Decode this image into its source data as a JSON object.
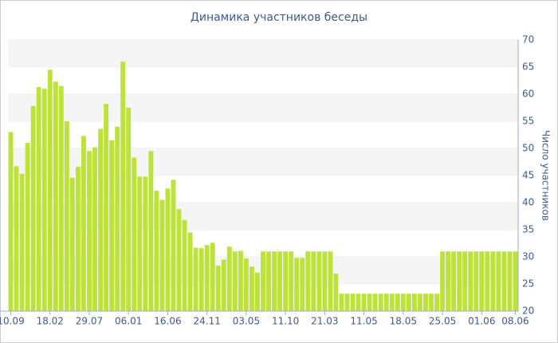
{
  "chart_data": {
    "type": "bar",
    "title": "Динамика участников беседы",
    "y_axis_label": "Число участников",
    "categories": [
      "10.09",
      null,
      null,
      null,
      null,
      null,
      null,
      "18.02",
      null,
      null,
      null,
      null,
      null,
      null,
      "29.07",
      null,
      null,
      null,
      null,
      null,
      null,
      "06.01",
      null,
      null,
      null,
      null,
      null,
      null,
      "16.06",
      null,
      null,
      null,
      null,
      null,
      null,
      "24.11",
      null,
      null,
      null,
      null,
      null,
      null,
      "03.05",
      null,
      null,
      null,
      null,
      null,
      null,
      "11.10",
      null,
      null,
      null,
      null,
      null,
      null,
      "21.03",
      null,
      null,
      null,
      null,
      null,
      null,
      "11.05",
      null,
      null,
      null,
      null,
      null,
      null,
      "18.05",
      null,
      null,
      null,
      null,
      null,
      null,
      "25.05",
      null,
      null,
      null,
      null,
      null,
      null,
      "01.06",
      null,
      null,
      null,
      null,
      null,
      "08.06"
    ],
    "values": [
      53,
      46.7,
      45.3,
      51,
      57.8,
      61.3,
      61,
      64.5,
      62.3,
      61.5,
      55,
      44.6,
      46.6,
      52.3,
      49.5,
      50.2,
      53.6,
      58.2,
      51.5,
      54,
      66,
      57.5,
      48.3,
      44.8,
      44.8,
      49.5,
      42.2,
      40.5,
      42.6,
      44.2,
      38.8,
      36.8,
      34.5,
      31.7,
      31.6,
      32.2,
      32.6,
      28.4,
      29.5,
      31.9,
      31,
      31.1,
      29.7,
      28.2,
      27.1,
      31,
      31,
      31,
      31,
      31,
      31,
      29.8,
      29.8,
      31,
      31,
      31,
      31,
      31,
      26.9,
      23.2,
      23.2,
      23.2,
      23.2,
      23.2,
      23.2,
      23.2,
      23.2,
      23.2,
      23.2,
      23.2,
      23.2,
      23.2,
      23.2,
      23.2,
      23.2,
      23.2,
      23.2,
      31,
      31,
      31,
      31,
      31,
      31,
      31,
      31,
      31,
      31,
      31,
      31,
      31,
      31
    ],
    "color": "#bde33a",
    "ylim": [
      20,
      70
    ],
    "yticks": [
      20,
      25,
      30,
      35,
      40,
      45,
      50,
      55,
      60,
      65,
      70
    ],
    "grid": true
  }
}
